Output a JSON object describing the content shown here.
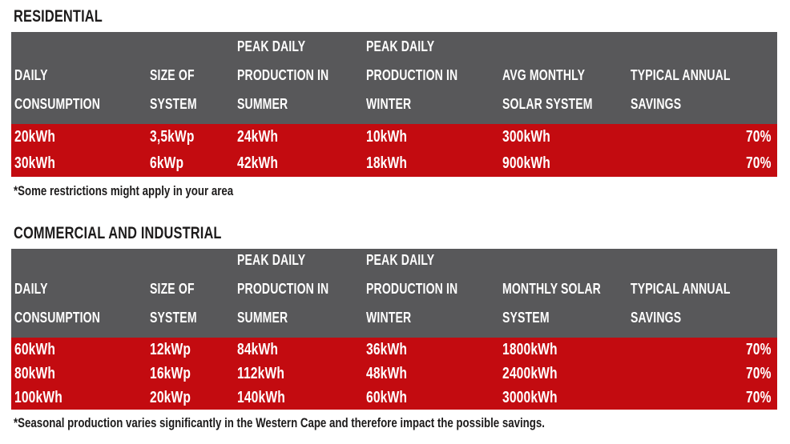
{
  "colors": {
    "header_bg": "#58585a",
    "row_bg": "#c30b10",
    "header_text": "#ffffff",
    "row_text": "#ffffff",
    "title_text": "#1d1b1b",
    "page_bg": "#ffffff"
  },
  "residential": {
    "title": "RESIDENTIAL",
    "columns": [
      {
        "lines": [
          "DAILY",
          "CONSUMPTION"
        ]
      },
      {
        "lines": [
          "SIZE OF",
          "SYSTEM"
        ]
      },
      {
        "lines": [
          "PEAK DAILY",
          "PRODUCTION IN",
          "SUMMER"
        ]
      },
      {
        "lines": [
          "PEAK DAILY",
          "PRODUCTION IN",
          "WINTER"
        ]
      },
      {
        "lines": [
          "AVG MONTHLY",
          "SOLAR SYSTEM"
        ]
      },
      {
        "lines": [
          "TYPICAL ANNUAL",
          "SAVINGS"
        ]
      }
    ],
    "rows": [
      [
        "20kWh",
        "3,5kWp",
        "24kWh",
        "10kWh",
        "300kWh",
        "70%"
      ],
      [
        "30kWh",
        "6kWp",
        "42kWh",
        "18kWh",
        "900kWh",
        "70%"
      ]
    ],
    "footnote": "*Some restrictions might apply in your area"
  },
  "commercial": {
    "title": "COMMERCIAL AND INDUSTRIAL",
    "columns": [
      {
        "lines": [
          "DAILY",
          "CONSUMPTION"
        ]
      },
      {
        "lines": [
          "SIZE OF",
          "SYSTEM"
        ]
      },
      {
        "lines": [
          "PEAK DAILY",
          "PRODUCTION IN",
          "SUMMER"
        ]
      },
      {
        "lines": [
          "PEAK DAILY",
          "PRODUCTION IN",
          "WINTER"
        ]
      },
      {
        "lines": [
          "MONTHLY SOLAR",
          "SYSTEM"
        ]
      },
      {
        "lines": [
          "TYPICAL ANNUAL",
          "SAVINGS"
        ]
      }
    ],
    "rows": [
      [
        "60kWh",
        "12kWp",
        "84kWh",
        "36kWh",
        "1800kWh",
        "70%"
      ],
      [
        "80kWh",
        "16kWp",
        "112kWh",
        "48kWh",
        "2400kWh",
        "70%"
      ],
      [
        "100kWh",
        "20kWp",
        "140kWh",
        "60kWh",
        "3000kWh",
        "70%"
      ]
    ],
    "footnote": "*Seasonal production varies significantly in the Western Cape and therefore impact the possible savings."
  }
}
